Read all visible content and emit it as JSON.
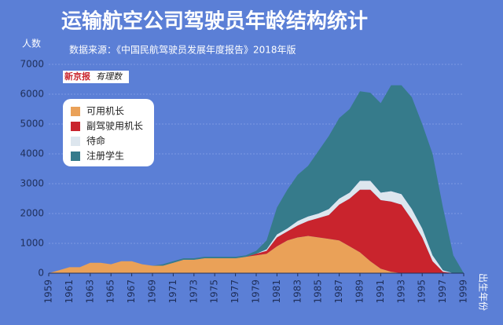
{
  "chart_data": {
    "type": "stacked-area",
    "title": "运输航空公司驾驶员年龄结构统计",
    "subtitle": "数据来源：《中国民航驾驶员发展年度报告》2018年版",
    "source_logo": [
      "新京报",
      "有理数"
    ],
    "y_label": "人数",
    "x_label": "出生年份",
    "x": [
      1959,
      1960,
      1961,
      1962,
      1963,
      1964,
      1965,
      1966,
      1967,
      1968,
      1969,
      1970,
      1971,
      1972,
      1973,
      1974,
      1975,
      1976,
      1977,
      1978,
      1979,
      1980,
      1981,
      1982,
      1983,
      1984,
      1985,
      1986,
      1987,
      1988,
      1989,
      1990,
      1991,
      1992,
      1993,
      1994,
      1995,
      1996,
      1997,
      1998,
      1999
    ],
    "series": [
      {
        "name": "可用机长",
        "color": "#eaa158",
        "values": [
          0,
          100,
          200,
          200,
          350,
          350,
          300,
          400,
          400,
          300,
          250,
          250,
          350,
          450,
          450,
          500,
          500,
          500,
          500,
          550,
          600,
          650,
          900,
          1100,
          1200,
          1250,
          1200,
          1150,
          1100,
          900,
          700,
          400,
          150,
          50,
          0,
          0,
          0,
          0,
          0,
          0,
          0
        ]
      },
      {
        "name": "副驾驶用机长",
        "color": "#c9242d",
        "values": [
          0,
          0,
          0,
          0,
          0,
          0,
          0,
          0,
          0,
          0,
          0,
          0,
          0,
          0,
          0,
          0,
          0,
          0,
          0,
          0,
          50,
          100,
          300,
          300,
          400,
          500,
          650,
          800,
          1200,
          1600,
          2100,
          2400,
          2300,
          2350,
          2300,
          1800,
          1200,
          400,
          50,
          0,
          0
        ]
      },
      {
        "name": "待命",
        "color": "#dde6ee",
        "values": [
          0,
          0,
          0,
          0,
          0,
          0,
          0,
          0,
          0,
          0,
          0,
          0,
          0,
          0,
          0,
          0,
          0,
          0,
          0,
          0,
          0,
          50,
          100,
          100,
          150,
          150,
          150,
          200,
          200,
          200,
          300,
          300,
          250,
          350,
          350,
          350,
          300,
          200,
          50,
          0,
          0
        ]
      },
      {
        "name": "注册学生",
        "color": "#367b8b",
        "values": [
          0,
          0,
          0,
          0,
          0,
          0,
          0,
          0,
          0,
          0,
          0,
          50,
          50,
          50,
          50,
          50,
          50,
          50,
          50,
          50,
          100,
          300,
          900,
          1300,
          1550,
          1700,
          2100,
          2450,
          2700,
          2800,
          3000,
          2950,
          3000,
          3550,
          3650,
          3750,
          3500,
          3400,
          2100,
          600,
          0
        ]
      }
    ],
    "xlim": [
      1959,
      1999
    ],
    "xticks": [
      1959,
      1961,
      1963,
      1965,
      1967,
      1969,
      1971,
      1973,
      1975,
      1977,
      1979,
      1981,
      1983,
      1985,
      1987,
      1989,
      1991,
      1993,
      1995,
      1997,
      1999
    ],
    "ylim": [
      0,
      7000
    ],
    "yticks": [
      0,
      1000,
      2000,
      3000,
      4000,
      5000,
      6000,
      7000
    ],
    "grid": true
  }
}
